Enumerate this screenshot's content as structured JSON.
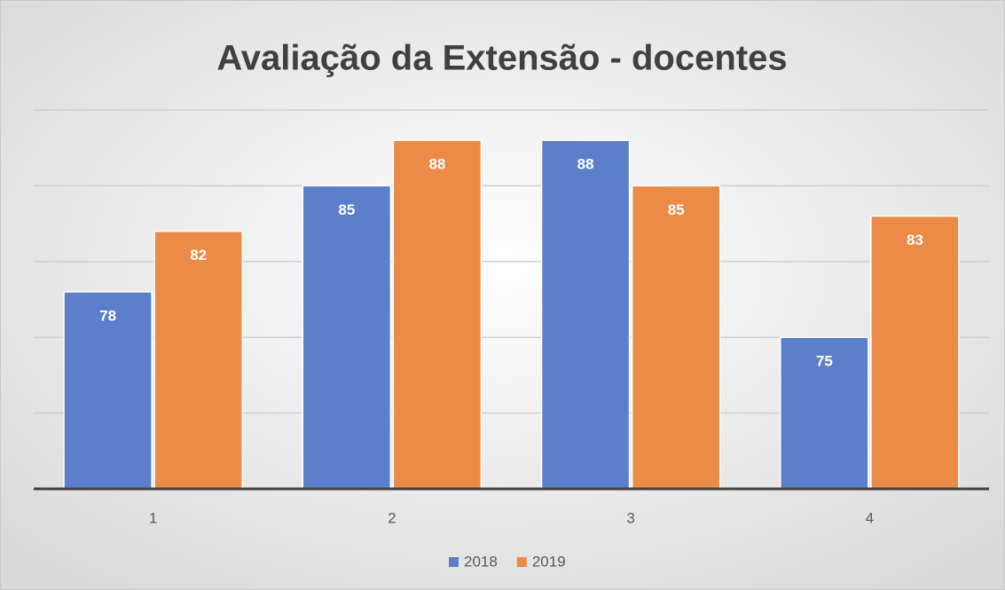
{
  "chart_data": {
    "type": "bar",
    "title": "Avaliação da Extensão - docentes",
    "categories": [
      "1",
      "2",
      "3",
      "4"
    ],
    "series": [
      {
        "name": "2018",
        "color": "#5b7fcb",
        "values": [
          78,
          85,
          88,
          75
        ]
      },
      {
        "name": "2019",
        "color": "#ec8a48",
        "values": [
          82,
          88,
          85,
          83
        ]
      }
    ],
    "ylim": [
      65,
      90
    ],
    "yticks": [
      65,
      70,
      75,
      80,
      85,
      90
    ],
    "grid": true,
    "legend": "bottom"
  }
}
